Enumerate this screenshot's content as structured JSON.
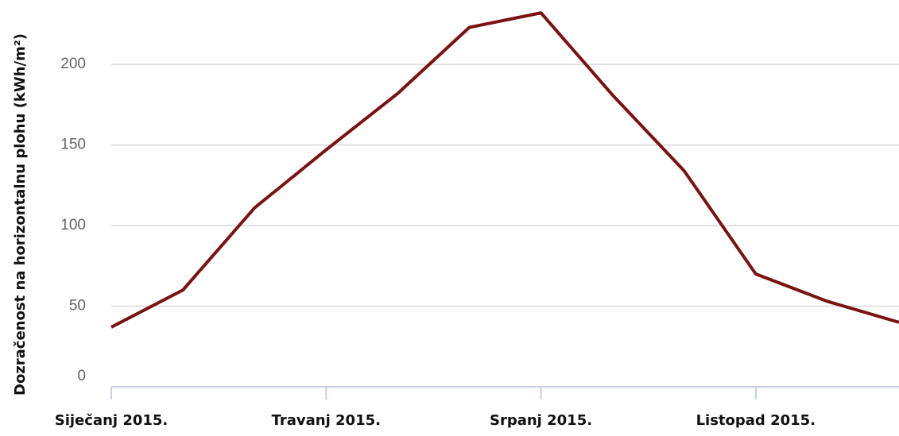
{
  "chart_data": {
    "type": "line",
    "y_label": "Dozračenost na horizontalnu plohu (kWh/m²)",
    "categories": [
      "Siječanj 2015.",
      null,
      null,
      "Travanj 2015.",
      null,
      null,
      "Srpanj 2015.",
      null,
      null,
      "Listopad 2015.",
      null,
      null
    ],
    "series": [
      {
        "name": null,
        "color": "#7b1212",
        "values": [
          37,
          60,
          111,
          147,
          182,
          223,
          232,
          181,
          134,
          70,
          53,
          40
        ]
      }
    ],
    "ylim": [
      0,
      240
    ],
    "yticks": [
      0,
      50,
      100,
      150,
      200
    ],
    "grid": true
  }
}
